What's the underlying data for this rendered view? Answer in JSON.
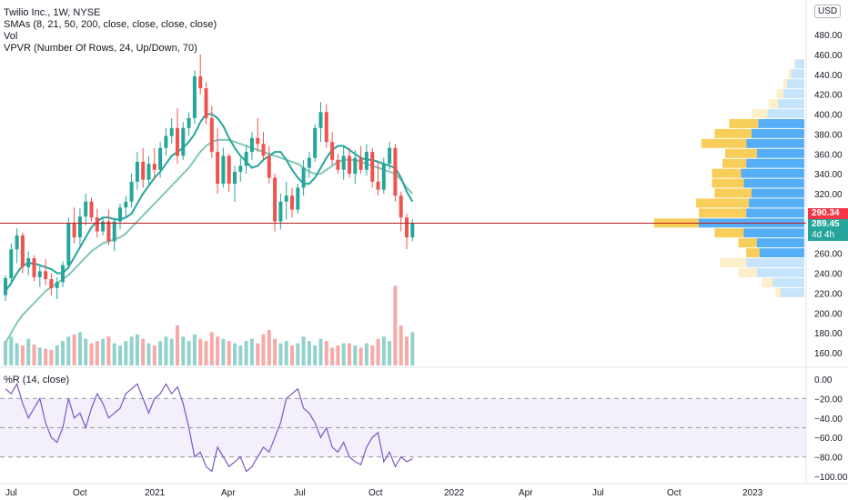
{
  "legend": {
    "symbol": "Twilio Inc., 1W, NYSE",
    "sma": "SMAs (8, 21, 50, 200, close, close, close, close)",
    "vol": "Vol",
    "vpvr": "VPVR (Number Of Rows, 24, Up/Down, 70)",
    "wr": "%R (14, close)"
  },
  "currency_button": "USD",
  "price_axis": {
    "ticks": [
      "480.00",
      "460.00",
      "440.00",
      "420.00",
      "400.00",
      "380.00",
      "360.00",
      "340.00",
      "320.00",
      "300.00",
      "280.00",
      "260.00",
      "240.00",
      "220.00",
      "200.00",
      "180.00",
      "160.00"
    ],
    "tick_values": [
      480,
      460,
      440,
      420,
      400,
      380,
      360,
      340,
      320,
      300,
      280,
      260,
      240,
      220,
      200,
      180,
      160
    ],
    "range": [
      148,
      500
    ]
  },
  "wr_axis": {
    "ticks": [
      "0.00",
      "−20.00",
      "−40.00",
      "−60.00",
      "−80.00",
      "−100.00"
    ],
    "tick_values": [
      0,
      -20,
      -40,
      -60,
      -80,
      -100
    ],
    "bands": [
      -20,
      -80
    ]
  },
  "time_axis": [
    "Jul",
    "Oct",
    "2021",
    "Apr",
    "Jul",
    "Oct",
    "2022",
    "Apr",
    "Jul",
    "Oct",
    "2023"
  ],
  "price_labels": {
    "last_red": "290.34",
    "current": "289.45",
    "countdown": "4d 4h"
  },
  "colors": {
    "up": "#26a69a",
    "down": "#ef5350",
    "sma8": "#26a69a",
    "sma21": "#81c7b9",
    "wr_line": "#7e57c2",
    "wr_band": "#f3f0fb",
    "vp_up": "#f7c948",
    "vp_down": "#42a5f5"
  },
  "chart_data": {
    "type": "candlestick",
    "candles_ohlc": [
      [
        218,
        238,
        212,
        235
      ],
      [
        235,
        270,
        228,
        264
      ],
      [
        264,
        285,
        250,
        278
      ],
      [
        278,
        281,
        240,
        246
      ],
      [
        246,
        262,
        238,
        255
      ],
      [
        255,
        258,
        232,
        236
      ],
      [
        236,
        248,
        226,
        242
      ],
      [
        242,
        254,
        228,
        234
      ],
      [
        234,
        240,
        218,
        225
      ],
      [
        225,
        236,
        214,
        231
      ],
      [
        231,
        252,
        226,
        248
      ],
      [
        248,
        296,
        244,
        290
      ],
      [
        290,
        306,
        270,
        276
      ],
      [
        276,
        305,
        268,
        297
      ],
      [
        297,
        320,
        288,
        312
      ],
      [
        312,
        316,
        292,
        296
      ],
      [
        296,
        305,
        276,
        282
      ],
      [
        282,
        296,
        278,
        292
      ],
      [
        292,
        304,
        268,
        272
      ],
      [
        272,
        296,
        262,
        292
      ],
      [
        292,
        310,
        284,
        306
      ],
      [
        306,
        318,
        296,
        312
      ],
      [
        312,
        340,
        306,
        332
      ],
      [
        332,
        362,
        324,
        352
      ],
      [
        352,
        366,
        326,
        334
      ],
      [
        334,
        358,
        328,
        350
      ],
      [
        350,
        366,
        334,
        344
      ],
      [
        344,
        372,
        336,
        366
      ],
      [
        366,
        386,
        358,
        378
      ],
      [
        378,
        396,
        370,
        386
      ],
      [
        386,
        406,
        350,
        358
      ],
      [
        358,
        392,
        354,
        386
      ],
      [
        386,
        402,
        378,
        396
      ],
      [
        396,
        444,
        390,
        438
      ],
      [
        438,
        460,
        420,
        426
      ],
      [
        426,
        432,
        390,
        396
      ],
      [
        396,
        408,
        356,
        362
      ],
      [
        362,
        386,
        320,
        330
      ],
      [
        330,
        366,
        326,
        358
      ],
      [
        358,
        360,
        322,
        330
      ],
      [
        330,
        348,
        312,
        342
      ],
      [
        342,
        356,
        332,
        348
      ],
      [
        348,
        368,
        340,
        362
      ],
      [
        362,
        382,
        354,
        376
      ],
      [
        376,
        396,
        362,
        370
      ],
      [
        370,
        382,
        354,
        358
      ],
      [
        358,
        368,
        330,
        336
      ],
      [
        336,
        340,
        282,
        292
      ],
      [
        292,
        320,
        284,
        312
      ],
      [
        312,
        332,
        294,
        318
      ],
      [
        318,
        326,
        296,
        304
      ],
      [
        304,
        330,
        300,
        326
      ],
      [
        326,
        354,
        318,
        346
      ],
      [
        346,
        362,
        336,
        356
      ],
      [
        356,
        390,
        352,
        386
      ],
      [
        386,
        412,
        372,
        402
      ],
      [
        402,
        410,
        366,
        372
      ],
      [
        372,
        382,
        348,
        354
      ],
      [
        354,
        360,
        340,
        344
      ],
      [
        344,
        368,
        334,
        358
      ],
      [
        358,
        366,
        336,
        340
      ],
      [
        340,
        364,
        330,
        356
      ],
      [
        356,
        368,
        340,
        344
      ],
      [
        344,
        370,
        338,
        362
      ],
      [
        362,
        366,
        326,
        332
      ],
      [
        332,
        352,
        318,
        324
      ],
      [
        324,
        356,
        320,
        350
      ],
      [
        350,
        372,
        344,
        366
      ],
      [
        366,
        370,
        312,
        318
      ],
      [
        318,
        322,
        282,
        296
      ],
      [
        296,
        300,
        264,
        276
      ],
      [
        276,
        294,
        272,
        290
      ]
    ],
    "volume": [
      22,
      26,
      20,
      18,
      24,
      19,
      16,
      15,
      14,
      18,
      22,
      26,
      28,
      30,
      24,
      20,
      22,
      24,
      26,
      20,
      18,
      22,
      26,
      28,
      24,
      20,
      18,
      22,
      26,
      24,
      36,
      26,
      22,
      28,
      24,
      22,
      30,
      26,
      24,
      22,
      20,
      18,
      22,
      24,
      20,
      28,
      32,
      24,
      20,
      22,
      18,
      20,
      26,
      22,
      18,
      24,
      22,
      16,
      18,
      20,
      20,
      18,
      16,
      20,
      18,
      24,
      26,
      22,
      72,
      36,
      26,
      30
    ],
    "volume_range": [
      0,
      82
    ],
    "sma8": [
      222,
      230,
      240,
      248,
      250,
      250,
      248,
      246,
      244,
      240,
      240,
      246,
      256,
      266,
      276,
      286,
      292,
      296,
      296,
      294,
      294,
      296,
      300,
      310,
      320,
      328,
      336,
      342,
      350,
      358,
      362,
      366,
      372,
      380,
      392,
      400,
      400,
      396,
      388,
      376,
      366,
      358,
      352,
      346,
      348,
      354,
      358,
      362,
      362,
      354,
      344,
      336,
      330,
      330,
      336,
      346,
      356,
      364,
      368,
      368,
      364,
      360,
      356,
      354,
      354,
      352,
      350,
      348,
      346,
      336,
      322,
      312
    ],
    "sma21": [
      170,
      180,
      190,
      198,
      204,
      210,
      216,
      222,
      226,
      230,
      234,
      238,
      244,
      250,
      256,
      262,
      266,
      270,
      272,
      274,
      276,
      280,
      286,
      292,
      298,
      304,
      310,
      316,
      322,
      328,
      334,
      340,
      346,
      354,
      362,
      368,
      372,
      374,
      374,
      374,
      372,
      370,
      368,
      366,
      364,
      362,
      360,
      358,
      356,
      354,
      352,
      350,
      346,
      342,
      340,
      340,
      344,
      348,
      352,
      354,
      354,
      354,
      352,
      350,
      348,
      346,
      344,
      342,
      340,
      334,
      326,
      320
    ],
    "williams_r": [
      -10,
      -15,
      -5,
      -25,
      -40,
      -30,
      -20,
      -45,
      -60,
      -65,
      -50,
      -20,
      -40,
      -35,
      -50,
      -30,
      -15,
      -25,
      -40,
      -35,
      -30,
      -15,
      -10,
      -5,
      -20,
      -35,
      -20,
      -15,
      -5,
      -15,
      -8,
      -25,
      -50,
      -80,
      -75,
      -90,
      -95,
      -70,
      -80,
      -90,
      -85,
      -80,
      -95,
      -90,
      -80,
      -70,
      -75,
      -60,
      -45,
      -20,
      -15,
      -10,
      -30,
      -35,
      -45,
      -60,
      -50,
      -70,
      -75,
      -65,
      -80,
      -85,
      -88,
      -70,
      -60,
      -55,
      -85,
      -75,
      -90,
      -80,
      -85,
      -82
    ],
    "volume_profile": [
      {
        "price": 450,
        "up": 1,
        "down": 7
      },
      {
        "price": 440,
        "up": 2,
        "down": 10
      },
      {
        "price": 430,
        "up": 3,
        "down": 13
      },
      {
        "price": 420,
        "up": 5,
        "down": 16
      },
      {
        "price": 410,
        "up": 7,
        "down": 20
      },
      {
        "price": 400,
        "up": 12,
        "down": 28
      },
      {
        "price": 390,
        "up": 22,
        "down": 35
      },
      {
        "price": 380,
        "up": 28,
        "down": 40
      },
      {
        "price": 370,
        "up": 34,
        "down": 44
      },
      {
        "price": 360,
        "up": 24,
        "down": 36
      },
      {
        "price": 350,
        "up": 18,
        "down": 44
      },
      {
        "price": 340,
        "up": 22,
        "down": 48
      },
      {
        "price": 330,
        "up": 24,
        "down": 46
      },
      {
        "price": 320,
        "up": 28,
        "down": 40
      },
      {
        "price": 310,
        "up": 40,
        "down": 42
      },
      {
        "price": 300,
        "up": 36,
        "down": 44
      },
      {
        "price": 290,
        "up": 34,
        "down": 80
      },
      {
        "price": 280,
        "up": 22,
        "down": 46
      },
      {
        "price": 270,
        "up": 14,
        "down": 36
      },
      {
        "price": 260,
        "up": 10,
        "down": 34
      },
      {
        "price": 250,
        "up": 20,
        "down": 44
      },
      {
        "price": 240,
        "up": 14,
        "down": 36
      },
      {
        "price": 230,
        "up": 8,
        "down": 24
      },
      {
        "price": 220,
        "up": 4,
        "down": 18
      }
    ],
    "price_line": 290.34
  }
}
